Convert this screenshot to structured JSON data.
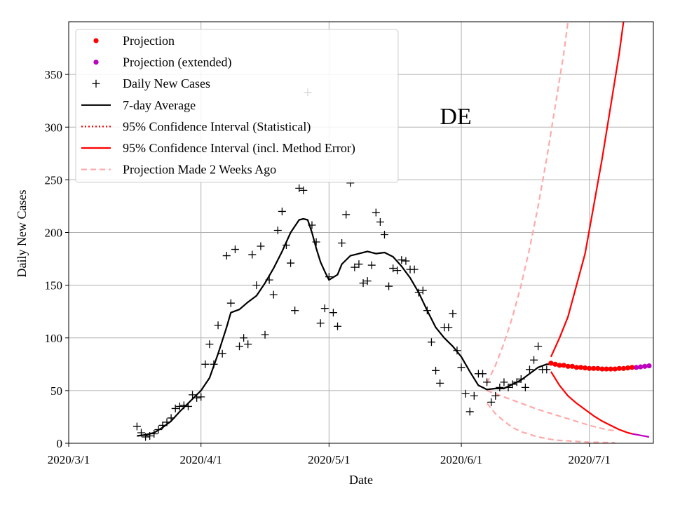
{
  "chart_data": {
    "type": "line",
    "title": "",
    "annotation": "DE",
    "xlabel": "Date",
    "ylabel": "Daily New Cases",
    "x_unit": "days since 2020/3/1",
    "xlim": [
      0,
      137
    ],
    "ylim": [
      0,
      400
    ],
    "xticks": [
      {
        "value": 0,
        "label": "2020/3/1"
      },
      {
        "value": 31,
        "label": "2020/4/1"
      },
      {
        "value": 61,
        "label": "2020/5/1"
      },
      {
        "value": 92,
        "label": "2020/6/1"
      },
      {
        "value": 122,
        "label": "2020/7/1"
      }
    ],
    "yticks": [
      0,
      50,
      100,
      150,
      200,
      250,
      300,
      350
    ],
    "grid": true,
    "legend_position": "top-left",
    "legend": [
      {
        "label": "Projection",
        "style": "dot",
        "color": "#ff0000"
      },
      {
        "label": "Projection (extended)",
        "style": "dot",
        "color": "#bf00bf"
      },
      {
        "label": "Daily New Cases",
        "style": "plus",
        "color": "#000000"
      },
      {
        "label": "7-day Average",
        "style": "solid",
        "color": "#000000"
      },
      {
        "label": "95% Confidence Interval (Statistical)",
        "style": "dotted",
        "color": "#ff0000"
      },
      {
        "label": "95% Confidence Interval (incl. Method Error)",
        "style": "solid",
        "color": "#ff0000"
      },
      {
        "label": "Projection Made 2 Weeks Ago",
        "style": "dashed",
        "color": "#ffaaaa"
      }
    ],
    "series": [
      {
        "name": "Daily New Cases",
        "kind": "markers",
        "color": "#000000",
        "points": [
          [
            16,
            16
          ],
          [
            17,
            10
          ],
          [
            18,
            6
          ],
          [
            19,
            7
          ],
          [
            20,
            9
          ],
          [
            21,
            13
          ],
          [
            22,
            17
          ],
          [
            23,
            20
          ],
          [
            24,
            24
          ],
          [
            25,
            33
          ],
          [
            26,
            35
          ],
          [
            27,
            36
          ],
          [
            28,
            35
          ],
          [
            29,
            46
          ],
          [
            30,
            43
          ],
          [
            31,
            44
          ],
          [
            32,
            75
          ],
          [
            33,
            94
          ],
          [
            34,
            75
          ],
          [
            35,
            112
          ],
          [
            36,
            85
          ],
          [
            37,
            178
          ],
          [
            38,
            133
          ],
          [
            39,
            184
          ],
          [
            40,
            92
          ],
          [
            41,
            100
          ],
          [
            42,
            94
          ],
          [
            43,
            179
          ],
          [
            44,
            150
          ],
          [
            45,
            187
          ],
          [
            46,
            103
          ],
          [
            47,
            155
          ],
          [
            48,
            141
          ],
          [
            49,
            202
          ],
          [
            50,
            220
          ],
          [
            51,
            188
          ],
          [
            52,
            171
          ],
          [
            53,
            126
          ],
          [
            54,
            242
          ],
          [
            55,
            240
          ],
          [
            56,
            333
          ],
          [
            57,
            207
          ],
          [
            58,
            191
          ],
          [
            59,
            114
          ],
          [
            60,
            128
          ],
          [
            61,
            158
          ],
          [
            62,
            124
          ],
          [
            63,
            111
          ],
          [
            64,
            190
          ],
          [
            65,
            217
          ],
          [
            66,
            247
          ],
          [
            67,
            167
          ],
          [
            68,
            170
          ],
          [
            69,
            152
          ],
          [
            70,
            154
          ],
          [
            71,
            169
          ],
          [
            72,
            219
          ],
          [
            73,
            210
          ],
          [
            74,
            198
          ],
          [
            75,
            149
          ],
          [
            76,
            166
          ],
          [
            77,
            164
          ],
          [
            78,
            174
          ],
          [
            79,
            173
          ],
          [
            80,
            165
          ],
          [
            81,
            165
          ],
          [
            82,
            143
          ],
          [
            83,
            145
          ],
          [
            84,
            126
          ],
          [
            85,
            96
          ],
          [
            86,
            69
          ],
          [
            87,
            57
          ],
          [
            88,
            110
          ],
          [
            89,
            110
          ],
          [
            90,
            123
          ],
          [
            91,
            88
          ],
          [
            92,
            72
          ],
          [
            93,
            47
          ],
          [
            94,
            30
          ],
          [
            95,
            45
          ],
          [
            96,
            66
          ],
          [
            97,
            66
          ],
          [
            98,
            58
          ],
          [
            99,
            39
          ],
          [
            100,
            45
          ],
          [
            101,
            53
          ],
          [
            102,
            58
          ],
          [
            103,
            53
          ],
          [
            104,
            56
          ],
          [
            105,
            58
          ],
          [
            106,
            61
          ],
          [
            107,
            53
          ],
          [
            108,
            70
          ],
          [
            109,
            79
          ],
          [
            110,
            92
          ],
          [
            111,
            70
          ],
          [
            112,
            70
          ]
        ]
      },
      {
        "name": "7-day Average",
        "kind": "line",
        "color": "#000000",
        "points": [
          [
            16,
            7
          ],
          [
            18,
            8
          ],
          [
            20,
            10
          ],
          [
            22,
            15
          ],
          [
            24,
            21
          ],
          [
            26,
            30
          ],
          [
            28,
            38
          ],
          [
            30,
            46
          ],
          [
            31,
            50
          ],
          [
            33,
            62
          ],
          [
            35,
            85
          ],
          [
            37,
            110
          ],
          [
            38,
            124
          ],
          [
            40,
            127
          ],
          [
            42,
            134
          ],
          [
            44,
            140
          ],
          [
            46,
            152
          ],
          [
            48,
            166
          ],
          [
            50,
            182
          ],
          [
            52,
            200
          ],
          [
            54,
            212
          ],
          [
            55,
            213
          ],
          [
            56,
            212
          ],
          [
            57,
            200
          ],
          [
            58,
            185
          ],
          [
            59,
            172
          ],
          [
            60,
            163
          ],
          [
            61,
            155
          ],
          [
            63,
            160
          ],
          [
            64,
            170
          ],
          [
            66,
            178
          ],
          [
            68,
            180
          ],
          [
            70,
            182
          ],
          [
            72,
            180
          ],
          [
            74,
            181
          ],
          [
            76,
            177
          ],
          [
            78,
            168
          ],
          [
            80,
            157
          ],
          [
            82,
            143
          ],
          [
            84,
            126
          ],
          [
            86,
            110
          ],
          [
            88,
            100
          ],
          [
            90,
            92
          ],
          [
            92,
            82
          ],
          [
            94,
            68
          ],
          [
            96,
            55
          ],
          [
            98,
            51
          ],
          [
            100,
            52
          ],
          [
            102,
            52
          ],
          [
            104,
            56
          ],
          [
            106,
            60
          ],
          [
            108,
            66
          ],
          [
            110,
            72
          ],
          [
            112,
            75
          ],
          [
            113,
            75
          ]
        ]
      },
      {
        "name": "Projection",
        "kind": "dots",
        "color": "#ff0000",
        "points": [
          [
            113,
            76
          ],
          [
            114,
            75
          ],
          [
            115,
            74
          ],
          [
            116,
            74
          ],
          [
            117,
            73
          ],
          [
            118,
            73
          ],
          [
            119,
            72
          ],
          [
            120,
            72
          ],
          [
            121,
            71.5
          ],
          [
            122,
            71
          ],
          [
            123,
            71
          ],
          [
            124,
            71
          ],
          [
            125,
            70.5
          ],
          [
            126,
            70.5
          ],
          [
            127,
            70.5
          ],
          [
            128,
            70.5
          ],
          [
            129,
            71
          ],
          [
            130,
            71
          ],
          [
            131,
            71.5
          ],
          [
            132,
            72
          ]
        ]
      },
      {
        "name": "Projection (extended)",
        "kind": "dots",
        "color": "#bf00bf",
        "points": [
          [
            133,
            72
          ],
          [
            134,
            72.5
          ],
          [
            135,
            73
          ],
          [
            136,
            73.5
          ]
        ]
      },
      {
        "name": "95% Confidence Interval (incl. Method Error) upper",
        "kind": "line",
        "color": "#ff0000",
        "points": [
          [
            113,
            82
          ],
          [
            115,
            100
          ],
          [
            117,
            120
          ],
          [
            119,
            150
          ],
          [
            121,
            180
          ],
          [
            123,
            225
          ],
          [
            125,
            270
          ],
          [
            127,
            320
          ],
          [
            129,
            370
          ],
          [
            130,
            400
          ]
        ]
      },
      {
        "name": "95% Confidence Interval (incl. Method Error) lower",
        "kind": "line",
        "color": "#ff0000",
        "points": [
          [
            113,
            68
          ],
          [
            115,
            55
          ],
          [
            117,
            45
          ],
          [
            119,
            38
          ],
          [
            121,
            32
          ],
          [
            123,
            26
          ],
          [
            125,
            21
          ],
          [
            127,
            17
          ],
          [
            129,
            13
          ],
          [
            131,
            10
          ],
          [
            132,
            9
          ]
        ]
      },
      {
        "name": "Confidence interval lower (extended)",
        "kind": "line",
        "color": "#bf00bf",
        "points": [
          [
            132,
            9
          ],
          [
            134,
            7.5
          ],
          [
            136,
            6
          ]
        ]
      },
      {
        "name": "Projection Made 2 Weeks Ago",
        "kind": "dashed",
        "color": "#ffaaaa",
        "points": [
          [
            98,
            50
          ],
          [
            102,
            44
          ],
          [
            106,
            38
          ],
          [
            110,
            32
          ],
          [
            114,
            27
          ],
          [
            118,
            22
          ],
          [
            122,
            17
          ],
          [
            126,
            13
          ],
          [
            128,
            12
          ]
        ]
      },
      {
        "name": "Projection Made 2 Weeks Ago (CI upper)",
        "kind": "dashed",
        "color": "#ffaaaa",
        "points": [
          [
            98,
            57
          ],
          [
            100,
            74
          ],
          [
            102,
            95
          ],
          [
            104,
            120
          ],
          [
            106,
            150
          ],
          [
            108,
            185
          ],
          [
            110,
            225
          ],
          [
            112,
            270
          ],
          [
            114,
            320
          ],
          [
            116,
            370
          ],
          [
            117,
            400
          ]
        ]
      },
      {
        "name": "Projection Made 2 Weeks Ago (CI lower)",
        "kind": "dashed",
        "color": "#ffaaaa",
        "points": [
          [
            98,
            38
          ],
          [
            100,
            28
          ],
          [
            102,
            21
          ],
          [
            104,
            15
          ],
          [
            106,
            11
          ],
          [
            110,
            6
          ],
          [
            114,
            3
          ],
          [
            118,
            2
          ],
          [
            122,
            1
          ],
          [
            128,
            0.5
          ]
        ]
      }
    ]
  }
}
